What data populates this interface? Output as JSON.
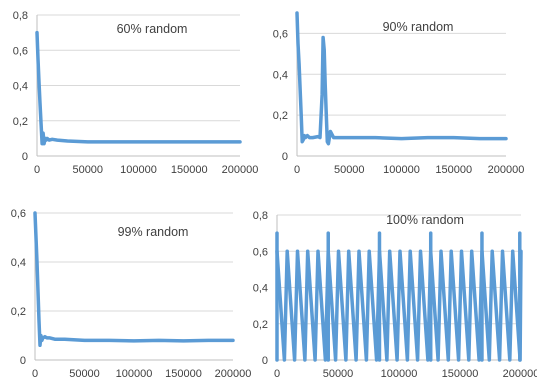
{
  "chart_data": [
    {
      "type": "line",
      "title": "60% random",
      "xlabel": "",
      "ylabel": "",
      "xlim": [
        0,
        200000
      ],
      "ylim": [
        0,
        0.8
      ],
      "x_ticks": [
        0,
        50000,
        100000,
        150000,
        200000
      ],
      "y_ticks": [
        0,
        0.2,
        0.4,
        0.6,
        0.8
      ],
      "y_tick_labels": [
        "0",
        "0,2",
        "0,4",
        "0,6",
        "0,8"
      ],
      "grid": "horizontal",
      "series": [
        {
          "color": "#5b9bd5",
          "x": [
            0,
            1000,
            2000,
            3000,
            4000,
            5000,
            6000,
            7000,
            8000,
            9000,
            10000,
            12000,
            15000,
            20000,
            30000,
            50000,
            75000,
            100000,
            125000,
            150000,
            175000,
            200000
          ],
          "y": [
            0.7,
            0.55,
            0.42,
            0.3,
            0.18,
            0.07,
            0.13,
            0.07,
            0.1,
            0.09,
            0.1,
            0.09,
            0.095,
            0.09,
            0.085,
            0.08,
            0.08,
            0.08,
            0.08,
            0.08,
            0.08,
            0.08
          ]
        }
      ]
    },
    {
      "type": "line",
      "title": "90% random",
      "xlabel": "",
      "ylabel": "",
      "xlim": [
        0,
        200000
      ],
      "ylim": [
        0,
        0.7
      ],
      "x_ticks": [
        0,
        50000,
        100000,
        150000,
        200000
      ],
      "y_ticks": [
        0,
        0.2,
        0.4,
        0.6
      ],
      "y_tick_labels": [
        "0",
        "0,2",
        "0,4",
        "0,6"
      ],
      "grid": "horizontal",
      "series": [
        {
          "color": "#5b9bd5",
          "x": [
            0,
            1000,
            2000,
            3000,
            4000,
            5000,
            6000,
            7000,
            8000,
            10000,
            12000,
            15000,
            20000,
            22000,
            24000,
            25000,
            26000,
            27000,
            28000,
            29000,
            30000,
            32000,
            35000,
            40000,
            50000,
            75000,
            100000,
            125000,
            150000,
            175000,
            200000
          ],
          "y": [
            0.7,
            0.55,
            0.45,
            0.33,
            0.2,
            0.07,
            0.08,
            0.1,
            0.09,
            0.1,
            0.09,
            0.09,
            0.095,
            0.09,
            0.3,
            0.58,
            0.52,
            0.35,
            0.2,
            0.07,
            0.06,
            0.12,
            0.09,
            0.09,
            0.09,
            0.09,
            0.085,
            0.09,
            0.09,
            0.085,
            0.085
          ]
        }
      ]
    },
    {
      "type": "line",
      "title": "99% random",
      "xlabel": "",
      "ylabel": "",
      "xlim": [
        0,
        200000
      ],
      "ylim": [
        0,
        0.6
      ],
      "x_ticks": [
        0,
        50000,
        100000,
        150000,
        200000
      ],
      "y_ticks": [
        0,
        0.2,
        0.4,
        0.6
      ],
      "y_tick_labels": [
        "0",
        "0,2",
        "0,4",
        "0,6"
      ],
      "grid": "horizontal",
      "series": [
        {
          "color": "#5b9bd5",
          "x": [
            0,
            1000,
            2000,
            3000,
            4000,
            5000,
            6000,
            7000,
            8000,
            10000,
            12000,
            15000,
            20000,
            30000,
            50000,
            75000,
            100000,
            125000,
            150000,
            175000,
            200000
          ],
          "y": [
            0.6,
            0.5,
            0.4,
            0.28,
            0.16,
            0.06,
            0.1,
            0.08,
            0.09,
            0.095,
            0.09,
            0.09,
            0.085,
            0.085,
            0.08,
            0.08,
            0.078,
            0.08,
            0.078,
            0.08,
            0.08
          ]
        }
      ]
    },
    {
      "type": "line",
      "title": "100% random",
      "xlabel": "",
      "ylabel": "",
      "xlim": [
        0,
        200000
      ],
      "ylim": [
        0,
        0.8
      ],
      "x_ticks": [
        0,
        50000,
        100000,
        150000,
        200000
      ],
      "y_ticks": [
        0,
        0.2,
        0.4,
        0.6,
        0.8
      ],
      "y_tick_labels": [
        "0",
        "0,2",
        "0,4",
        "0,6",
        "0,8"
      ],
      "grid": "horizontal",
      "pattern": "sawtooth",
      "period": 8400,
      "peak": 0.6,
      "spike_peak": 0.7,
      "spike_x": [
        0,
        42000,
        84000,
        126000,
        168000,
        199000
      ],
      "series": [
        {
          "color": "#5b9bd5"
        }
      ]
    }
  ]
}
